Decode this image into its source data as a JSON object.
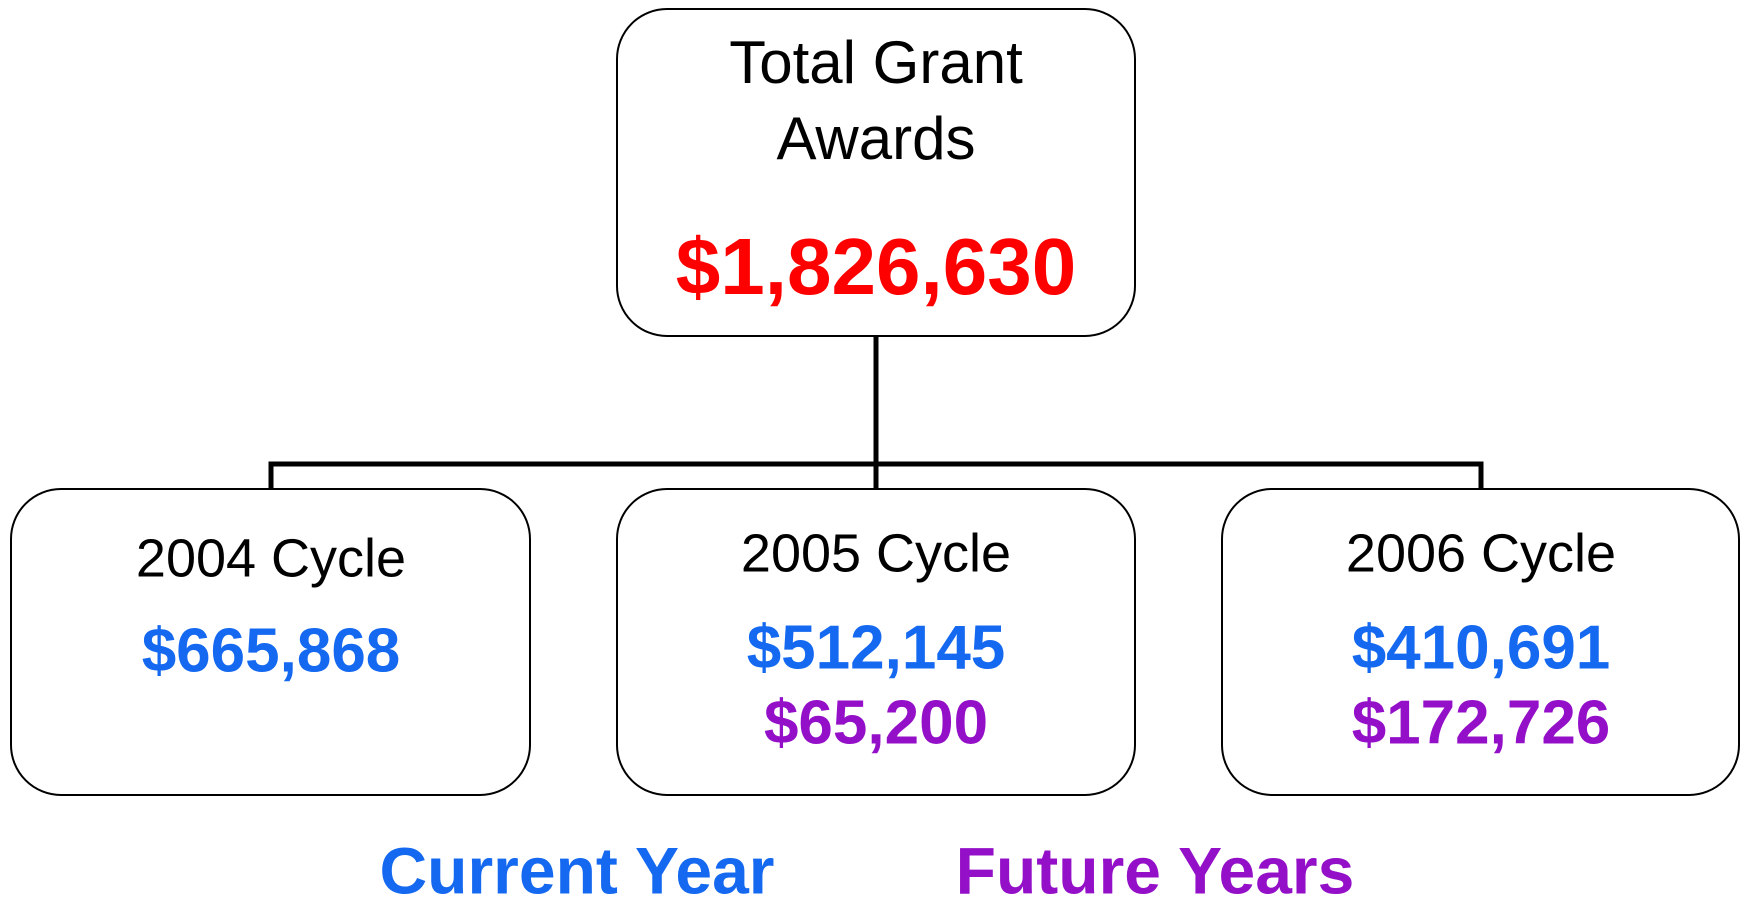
{
  "root": {
    "title": [
      "Total Grant",
      "Awards"
    ],
    "value": "$1,826,630"
  },
  "nodes": [
    {
      "label": "2004 Cycle",
      "current": "$665,868"
    },
    {
      "label": "2005 Cycle",
      "current": "$512,145",
      "future": "$65,200"
    },
    {
      "label": "2006 Cycle",
      "current": "$410,691",
      "future": "$172,726"
    }
  ],
  "legend": {
    "current": "Current Year",
    "future": "Future Years"
  }
}
